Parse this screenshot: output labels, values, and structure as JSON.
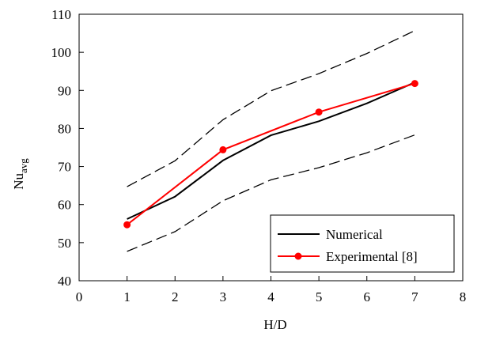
{
  "chart_data": {
    "type": "line",
    "xlabel": "H/D",
    "ylabel": "Nu",
    "ylabel_sub": "avg",
    "xlim": [
      0,
      8
    ],
    "ylim": [
      40,
      110
    ],
    "x_ticks": [
      0,
      1,
      2,
      3,
      4,
      5,
      6,
      7,
      8
    ],
    "y_ticks": [
      40,
      50,
      60,
      70,
      80,
      90,
      100,
      110
    ],
    "grid": false,
    "legend_position": "bottom-right",
    "series": [
      {
        "name": "Numerical",
        "color": "#000000",
        "marker": "none",
        "dash": "solid",
        "in_legend": true,
        "x": [
          1,
          2,
          3,
          4,
          5,
          6,
          7
        ],
        "y": [
          56.2,
          62.1,
          71.6,
          78.2,
          81.9,
          86.6,
          92.1
        ]
      },
      {
        "name": "Experimental [8]",
        "color": "#ff0000",
        "marker": "circle",
        "dash": "solid",
        "in_legend": true,
        "x": [
          1,
          3,
          5,
          7
        ],
        "y": [
          54.7,
          74.4,
          84.3,
          91.8
        ]
      },
      {
        "name": "",
        "color": "#000000",
        "marker": "none",
        "dash": "dashed",
        "in_legend": false,
        "x": [
          1,
          2,
          3,
          4,
          5,
          6,
          7
        ],
        "y": [
          64.7,
          71.5,
          82.3,
          89.9,
          94.4,
          99.7,
          105.7
        ]
      },
      {
        "name": "",
        "color": "#000000",
        "marker": "none",
        "dash": "dashed",
        "in_legend": false,
        "x": [
          1,
          2,
          3,
          4,
          5,
          6,
          7
        ],
        "y": [
          47.7,
          52.9,
          61.0,
          66.5,
          69.7,
          73.6,
          78.3
        ]
      }
    ]
  }
}
